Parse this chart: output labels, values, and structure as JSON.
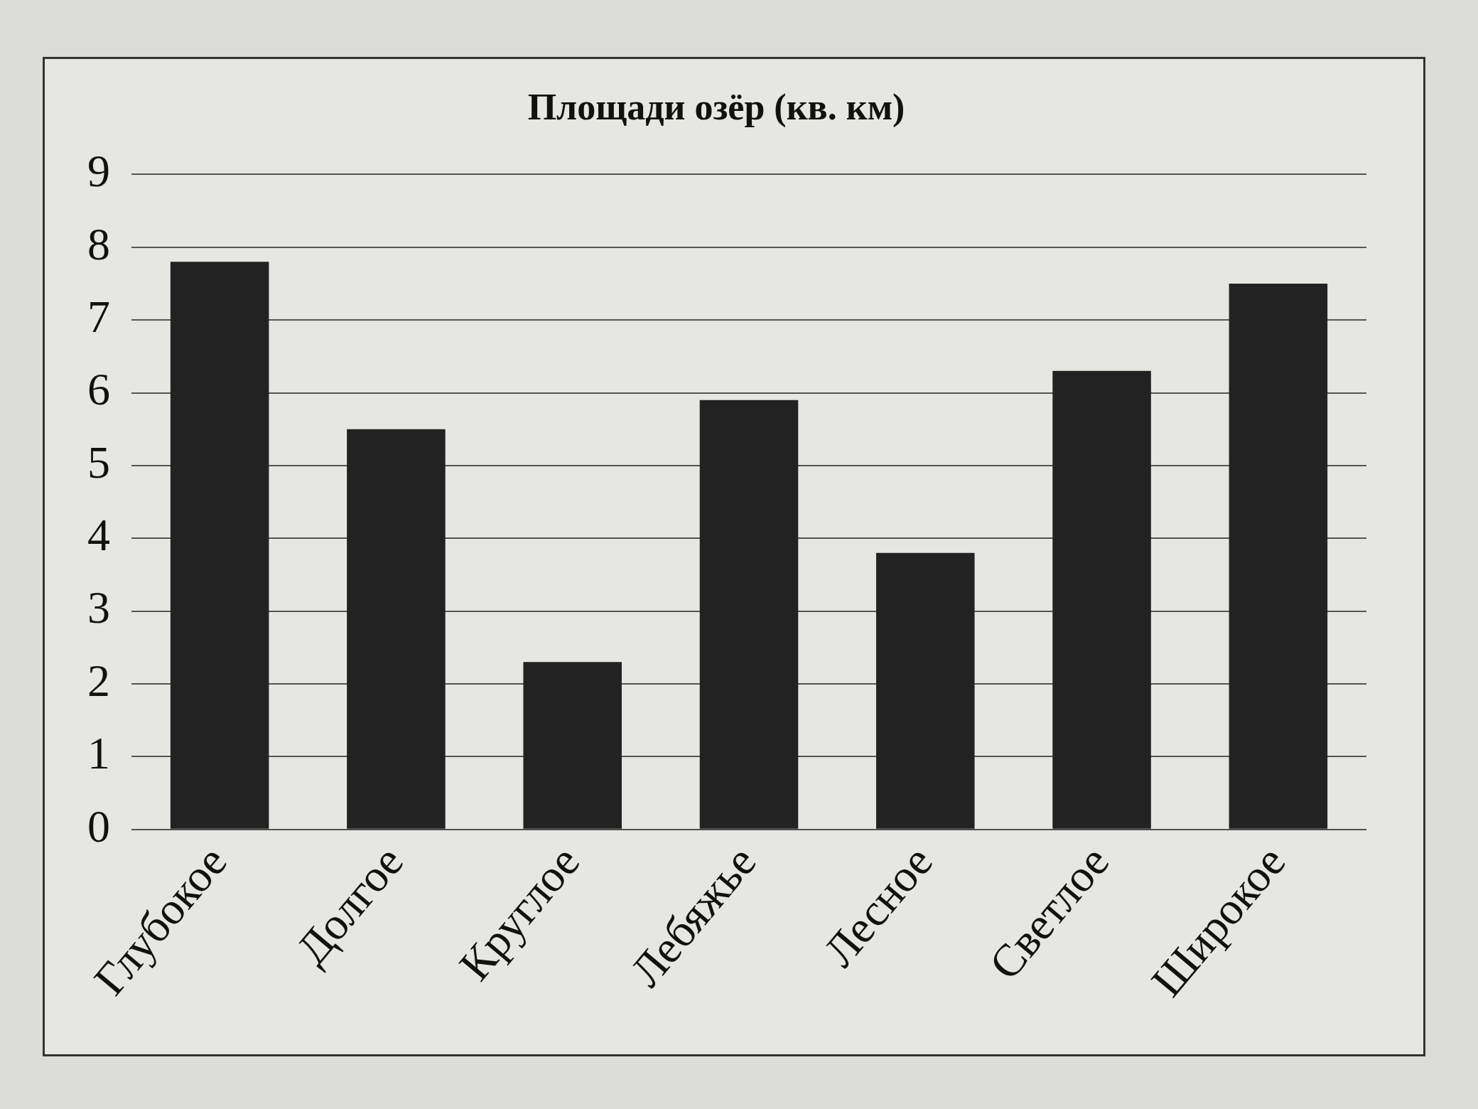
{
  "chart_data": {
    "type": "bar",
    "title": "Площади озёр (кв. км)",
    "categories": [
      "Глубокое",
      "Долгое",
      "Круглое",
      "Лебяжье",
      "Лесное",
      "Светлое",
      "Широкое"
    ],
    "values": [
      7.8,
      5.5,
      2.3,
      5.9,
      3.8,
      6.3,
      7.5
    ],
    "color": "#222222",
    "ylim": [
      0,
      9
    ],
    "yticks": [
      0,
      1,
      2,
      3,
      4,
      5,
      6,
      7,
      8,
      9
    ],
    "grid": "y",
    "legend": false
  }
}
